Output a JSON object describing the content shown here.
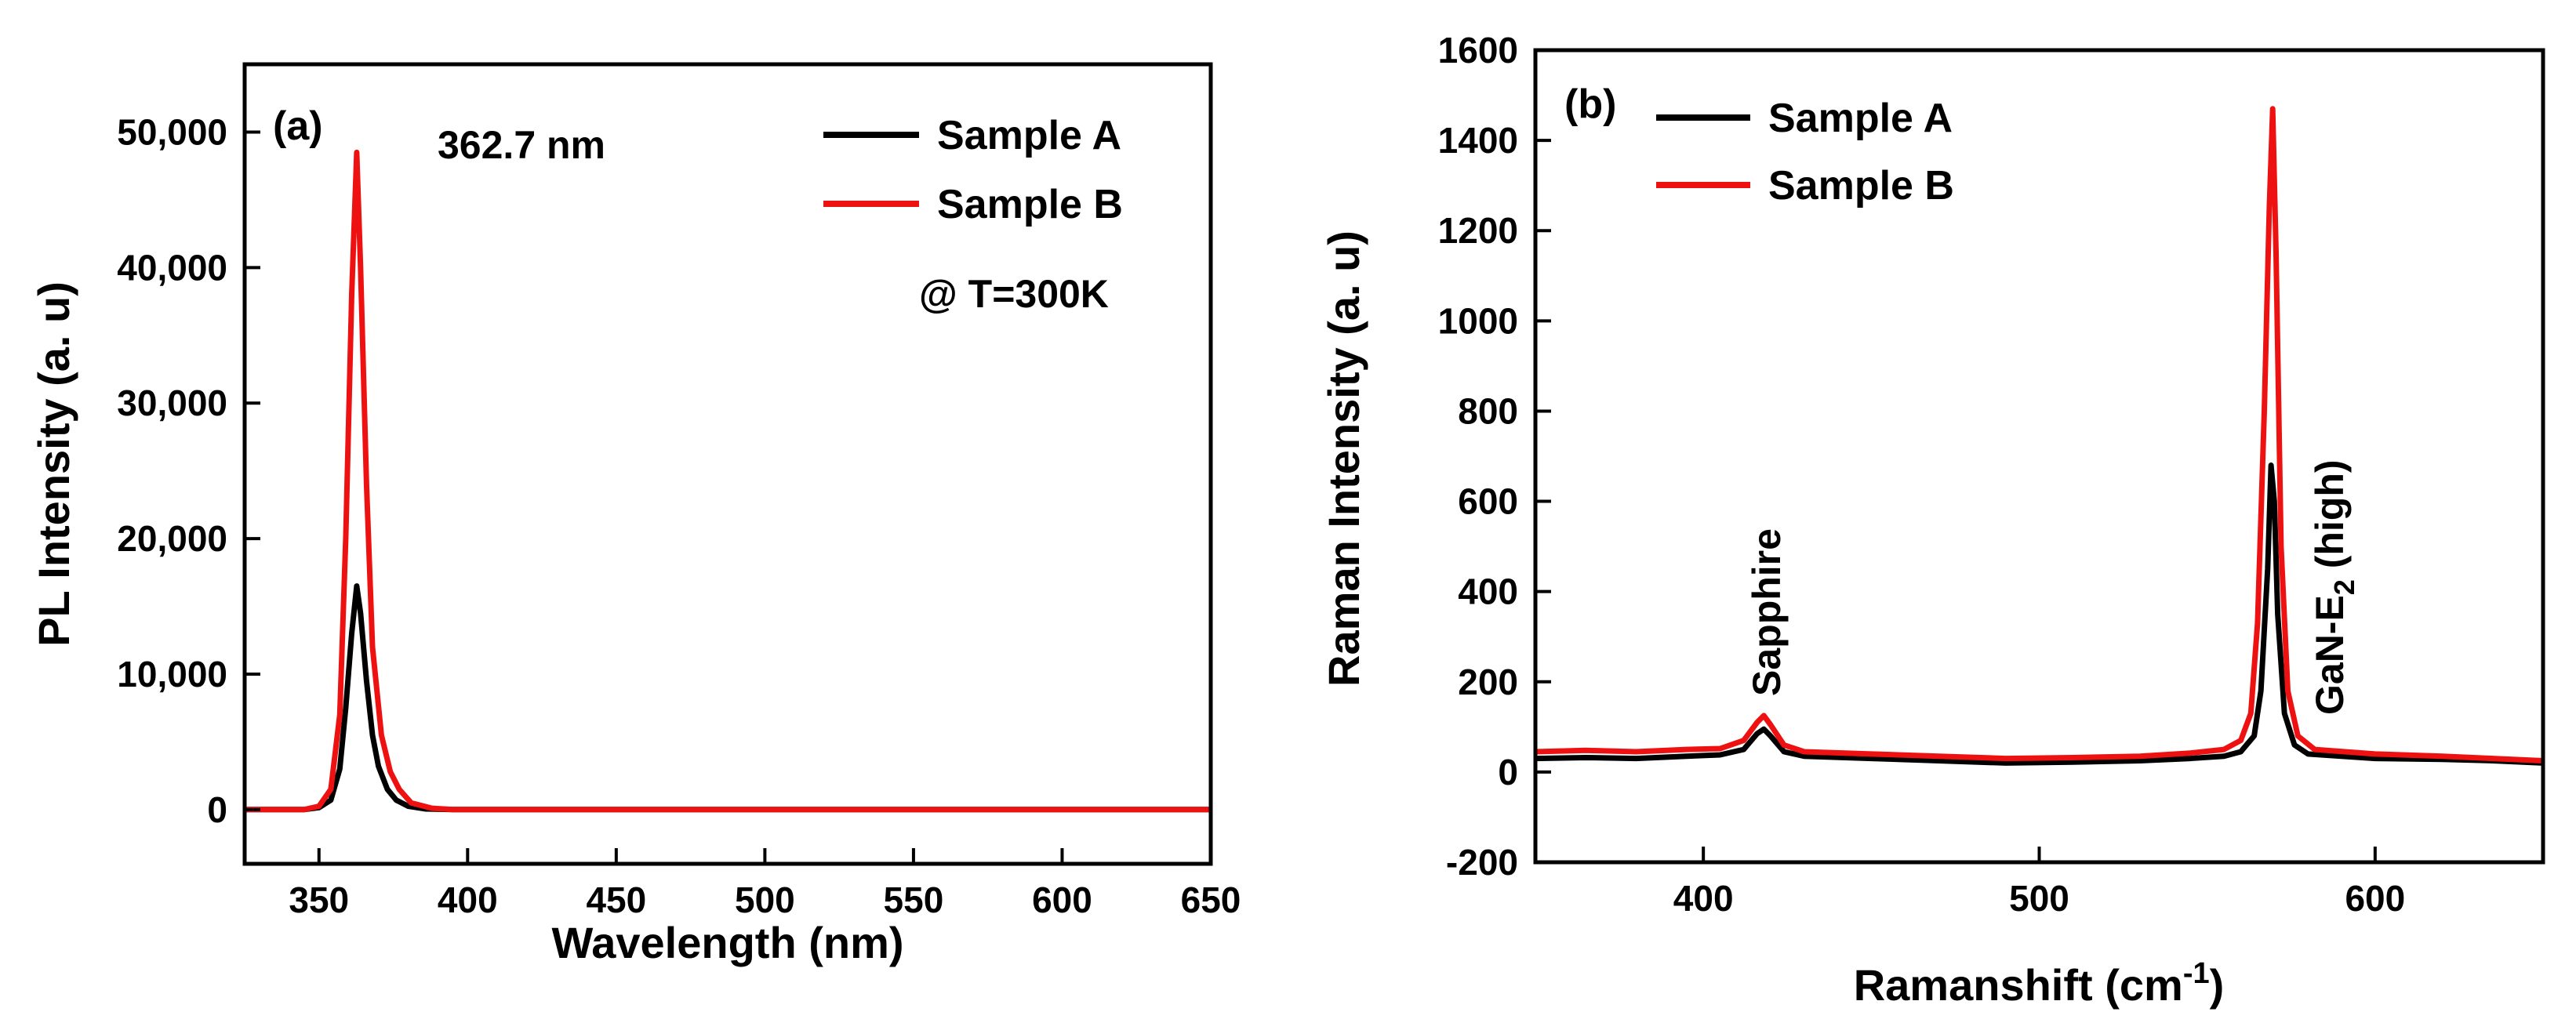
{
  "chart_data": [
    {
      "panel_label": "(a)",
      "type": "line",
      "xlabel": "Wavelength (nm)",
      "ylabel": "PL Intensity (a. u)",
      "xlim": [
        325,
        650
      ],
      "ylim": [
        -4000,
        55000
      ],
      "x_ticks": [
        350,
        400,
        450,
        500,
        550,
        600,
        650
      ],
      "x_tick_labels": [
        "350",
        "400",
        "450",
        "500",
        "550",
        "600",
        "650"
      ],
      "y_ticks": [
        0,
        10000,
        20000,
        30000,
        40000,
        50000
      ],
      "y_tick_labels": [
        "0",
        "10,000",
        "20,000",
        "30,000",
        "40,000",
        "50,000"
      ],
      "annotations": [
        {
          "text": "362.7 nm"
        },
        {
          "text": "@ T=300K"
        }
      ],
      "legend_position": "top-right",
      "series": [
        {
          "name": "Sample A",
          "color": "#000000",
          "points": [
            [
              325,
              0
            ],
            [
              345,
              0
            ],
            [
              350,
              150
            ],
            [
              354,
              700
            ],
            [
              357,
              3000
            ],
            [
              359,
              7500
            ],
            [
              361,
              13000
            ],
            [
              362.7,
              16500
            ],
            [
              364,
              14500
            ],
            [
              366,
              9500
            ],
            [
              368,
              5500
            ],
            [
              370,
              3200
            ],
            [
              373,
              1500
            ],
            [
              376,
              700
            ],
            [
              380,
              250
            ],
            [
              386,
              50
            ],
            [
              395,
              0
            ],
            [
              650,
              0
            ]
          ]
        },
        {
          "name": "Sample B",
          "color": "#ee1111",
          "points": [
            [
              325,
              0
            ],
            [
              345,
              0
            ],
            [
              350,
              250
            ],
            [
              354,
              1500
            ],
            [
              357,
              7000
            ],
            [
              359,
              20000
            ],
            [
              361,
              38000
            ],
            [
              362.7,
              48500
            ],
            [
              364,
              40000
            ],
            [
              366,
              24000
            ],
            [
              368,
              12000
            ],
            [
              371,
              5500
            ],
            [
              374,
              2800
            ],
            [
              377,
              1500
            ],
            [
              381,
              500
            ],
            [
              388,
              100
            ],
            [
              395,
              0
            ],
            [
              650,
              0
            ]
          ]
        }
      ]
    },
    {
      "panel_label": "(b)",
      "type": "line",
      "xlabel": "Ramanshift (cm",
      "xlabel_sup": "-1",
      "xlabel_close": ")",
      "ylabel": "Raman Intensity (a. u)",
      "xlim": [
        350,
        650
      ],
      "ylim": [
        -200,
        1600
      ],
      "x_ticks": [
        400,
        500,
        600
      ],
      "x_tick_labels": [
        "400",
        "500",
        "600"
      ],
      "y_ticks": [
        -200,
        0,
        200,
        400,
        600,
        800,
        1000,
        1200,
        1400,
        1600
      ],
      "y_tick_labels": [
        "-200",
        "0",
        "200",
        "400",
        "600",
        "800",
        "1000",
        "1200",
        "1400",
        "1600"
      ],
      "annotations": [
        {
          "text": "Sapphire"
        },
        {
          "text": "GaN-E",
          "sub": "2",
          "suffix": " (high)"
        }
      ],
      "legend_position": "top-left",
      "series": [
        {
          "name": "Sample A",
          "color": "#000000",
          "points": [
            [
              350,
              30
            ],
            [
              365,
              32
            ],
            [
              380,
              30
            ],
            [
              395,
              35
            ],
            [
              405,
              38
            ],
            [
              412,
              50
            ],
            [
              416,
              85
            ],
            [
              418,
              95
            ],
            [
              420,
              80
            ],
            [
              424,
              45
            ],
            [
              430,
              35
            ],
            [
              450,
              30
            ],
            [
              470,
              25
            ],
            [
              490,
              20
            ],
            [
              510,
              22
            ],
            [
              530,
              25
            ],
            [
              545,
              30
            ],
            [
              555,
              35
            ],
            [
              560,
              45
            ],
            [
              564,
              80
            ],
            [
              566,
              180
            ],
            [
              568,
              450
            ],
            [
              569,
              680
            ],
            [
              570,
              600
            ],
            [
              571,
              350
            ],
            [
              573,
              130
            ],
            [
              576,
              60
            ],
            [
              580,
              40
            ],
            [
              600,
              30
            ],
            [
              620,
              28
            ],
            [
              635,
              25
            ],
            [
              650,
              20
            ]
          ]
        },
        {
          "name": "Sample B",
          "color": "#ee1111",
          "points": [
            [
              350,
              45
            ],
            [
              365,
              48
            ],
            [
              380,
              45
            ],
            [
              395,
              50
            ],
            [
              405,
              52
            ],
            [
              412,
              70
            ],
            [
              416,
              110
            ],
            [
              418,
              125
            ],
            [
              420,
              105
            ],
            [
              424,
              60
            ],
            [
              430,
              45
            ],
            [
              450,
              40
            ],
            [
              470,
              35
            ],
            [
              490,
              30
            ],
            [
              510,
              32
            ],
            [
              530,
              35
            ],
            [
              545,
              42
            ],
            [
              555,
              50
            ],
            [
              560,
              70
            ],
            [
              563,
              130
            ],
            [
              565,
              330
            ],
            [
              567,
              800
            ],
            [
              568.5,
              1250
            ],
            [
              569.5,
              1470
            ],
            [
              570.5,
              1150
            ],
            [
              572,
              500
            ],
            [
              574,
              180
            ],
            [
              577,
              80
            ],
            [
              582,
              50
            ],
            [
              600,
              40
            ],
            [
              620,
              35
            ],
            [
              635,
              30
            ],
            [
              650,
              25
            ]
          ]
        }
      ]
    }
  ]
}
